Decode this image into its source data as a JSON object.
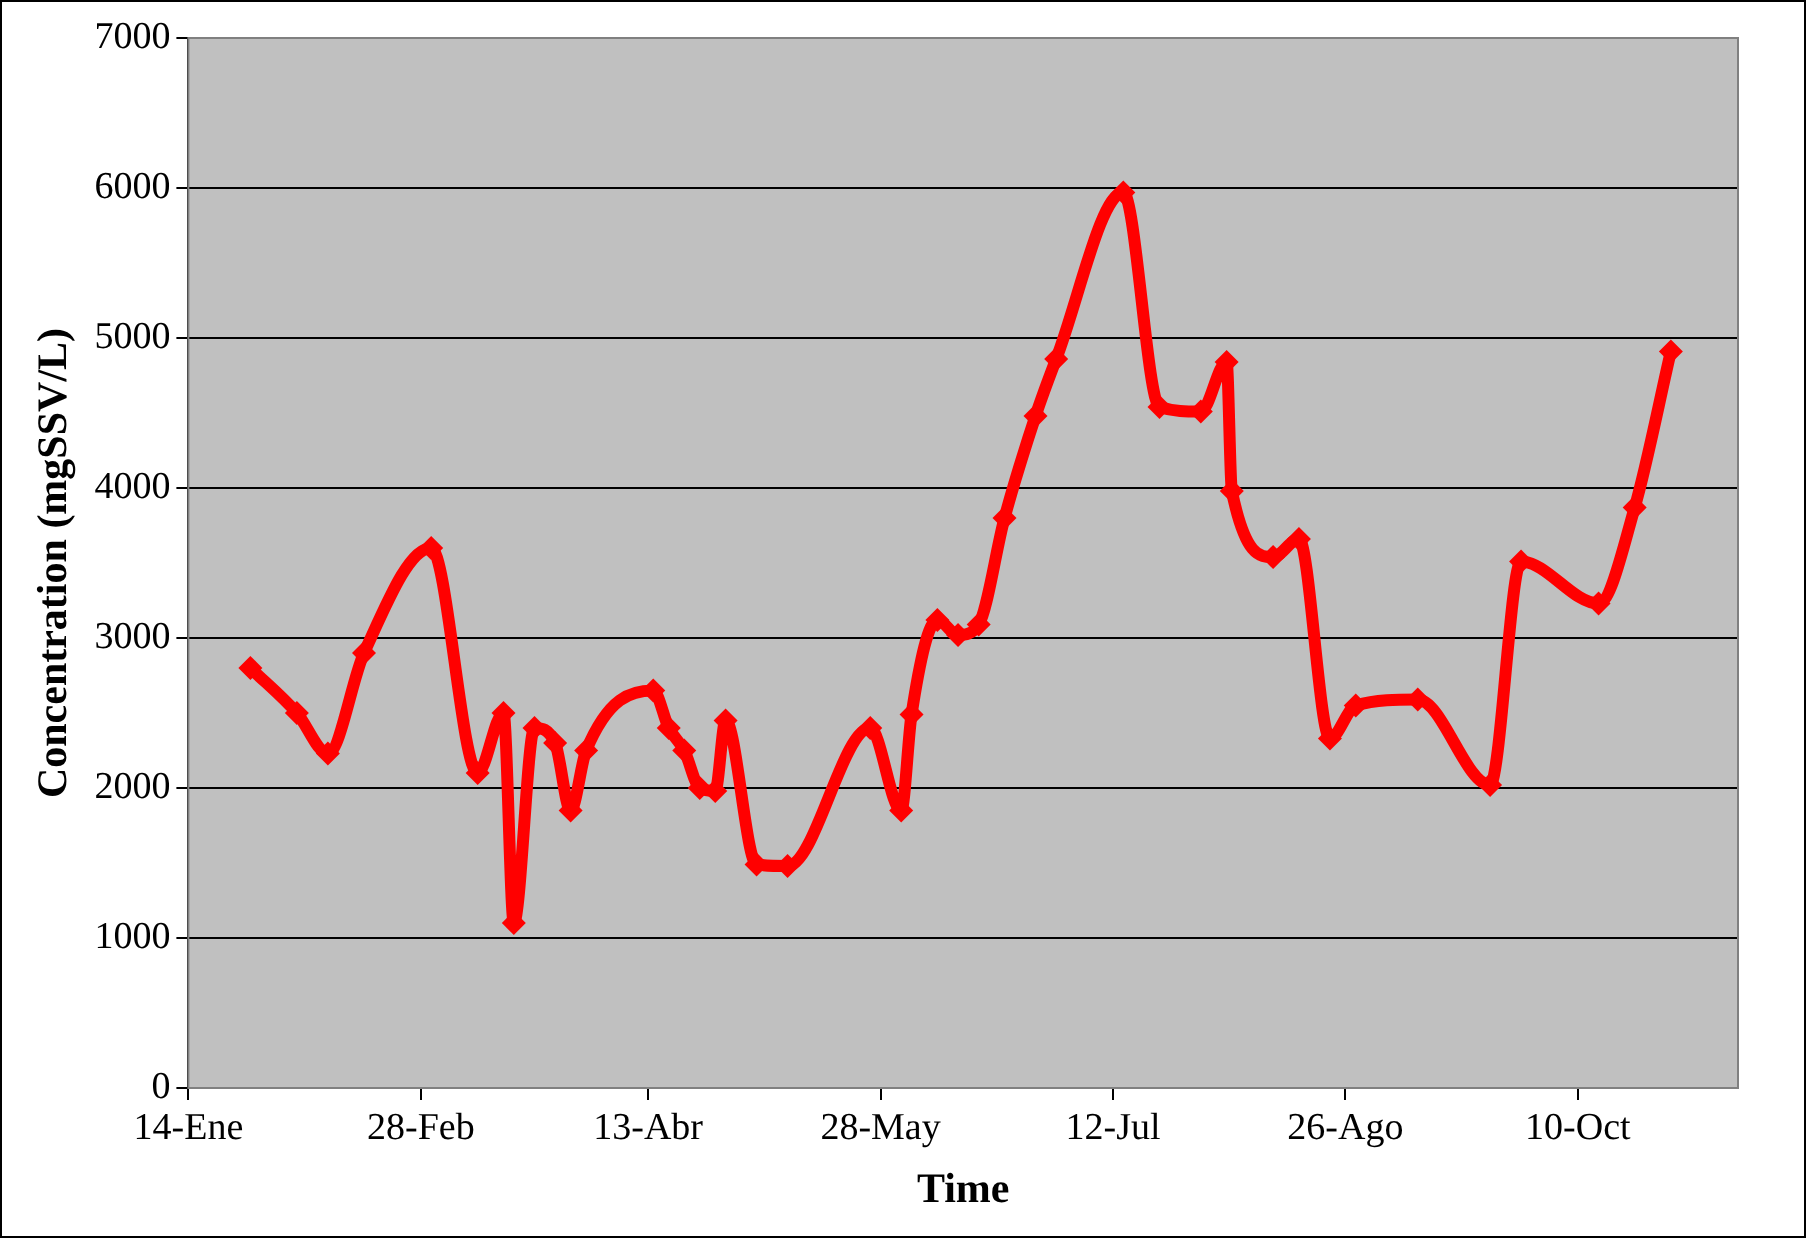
{
  "chart_data": {
    "type": "line",
    "xlabel": "Time",
    "ylabel": "Concentration (mgSSV/L)",
    "x": [
      "--01-26",
      "--02-04",
      "--02-10",
      "--02-17",
      "--03-02",
      "--03-11",
      "--03-16",
      "--03-18",
      "--03-22",
      "--03-26",
      "--03-29",
      "--04-01",
      "--04-14",
      "--04-17",
      "--04-20",
      "--04-23",
      "--04-26",
      "--04-28",
      "--05-04",
      "--05-10",
      "--05-26",
      "--06-01",
      "--06-03",
      "--06-08",
      "--06-12",
      "--06-16",
      "--06-21",
      "--06-27",
      "--07-01",
      "--07-14",
      "--07-21",
      "--07-29",
      "--08-03",
      "--08-04",
      "--08-12",
      "--08-17",
      "--08-23",
      "--08-28",
      "--09-09",
      "--09-23",
      "--09-29",
      "--10-14",
      "--10-21",
      "--10-28"
    ],
    "series": [
      {
        "color": "#ff0000",
        "values": [
          2800,
          2500,
          2230,
          2900,
          3600,
          2100,
          2500,
          1100,
          2400,
          2300,
          1850,
          2250,
          2650,
          2400,
          2250,
          2000,
          1980,
          2450,
          1490,
          1480,
          2400,
          1850,
          2490,
          3120,
          3020,
          3090,
          3800,
          4480,
          4860,
          5970,
          4540,
          4510,
          4840,
          3980,
          3540,
          3660,
          2330,
          2550,
          2590,
          2020,
          3510,
          3230,
          3870,
          4910
        ]
      }
    ],
    "xlim": [
      "--01-14",
      "--11-10"
    ],
    "xticks": [
      {
        "value": "--01-14",
        "label": "14-Ene"
      },
      {
        "value": "--02-28",
        "label": "28-Feb"
      },
      {
        "value": "--04-13",
        "label": "13-Abr"
      },
      {
        "value": "--05-28",
        "label": "28-May"
      },
      {
        "value": "--07-12",
        "label": "12-Jul"
      },
      {
        "value": "--08-26",
        "label": "26-Ago"
      },
      {
        "value": "--10-10",
        "label": "10-Oct"
      }
    ],
    "ylim": [
      0,
      7000
    ],
    "yticks": [
      0,
      1000,
      2000,
      3000,
      4000,
      5000,
      6000,
      7000
    ],
    "grid": "y",
    "legend": false,
    "marker": "diamond",
    "line_style": "solid"
  }
}
